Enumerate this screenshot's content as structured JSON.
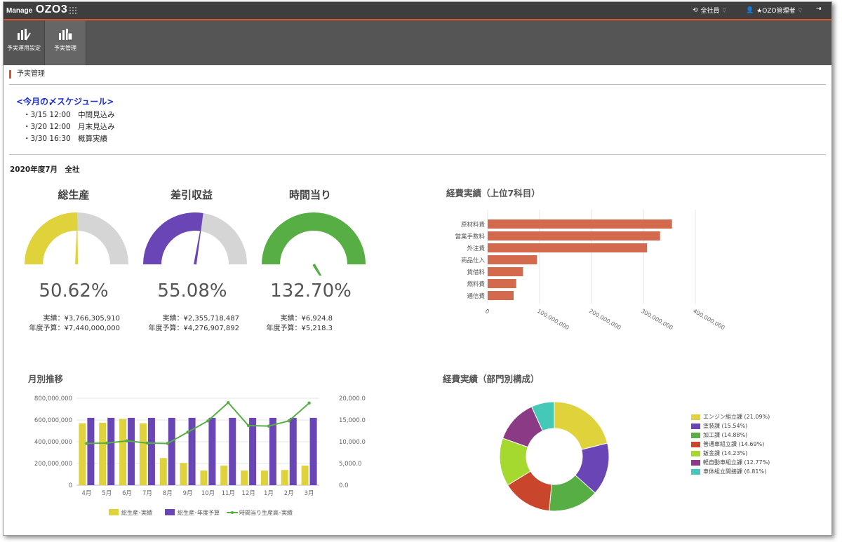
{
  "header": {
    "logo_prefix": "Manage",
    "logo_main": "OZO3",
    "scope_label": "全社員",
    "user_label": "★OZO管理者"
  },
  "toolbar": {
    "items": [
      {
        "label": "予実運用設定",
        "icon": "bar-chart-settings-icon"
      },
      {
        "label": "予実管理",
        "icon": "bar-chart-document-icon"
      }
    ]
  },
  "breadcrumb": "予実管理",
  "schedule": {
    "title": "<今月の〆スケジュール>",
    "items": [
      "・3/15 12:00　中間見込み",
      "・3/20 12:00　月末見込み",
      "・3/30 16:30　概算実績"
    ]
  },
  "period": "2020年度7月　全社",
  "colors": {
    "accent": "#d9542c",
    "gauge_yellow": "#dfd23a",
    "gauge_purple": "#6a45b5",
    "gauge_green": "#56ae44",
    "bar_orange": "#d36a4e",
    "gray_track": "#d5d5d5"
  },
  "gauges": [
    {
      "title": "総生産",
      "percent": "50.62%",
      "value": 50.62,
      "color": "#dfd23a",
      "actual": "実績：¥3,766,305,910",
      "budget": "年度予算：¥7,440,000,000"
    },
    {
      "title": "差引収益",
      "percent": "55.08%",
      "value": 55.08,
      "color": "#6a45b5",
      "actual": "実績：¥2,355,718,487",
      "budget": "年度予算：¥4,276,907,892"
    },
    {
      "title": "時間当り",
      "percent": "132.70%",
      "value": 132.7,
      "color": "#56ae44",
      "actual": "実績：¥6,924.8",
      "budget": "年度予算：¥5,218.3"
    }
  ],
  "chart_data": [
    {
      "type": "bar",
      "orientation": "horizontal",
      "title": "経費実績（上位7科目）",
      "categories": [
        "原材料費",
        "営業手数料",
        "外注費",
        "商品仕入",
        "賃借料",
        "燃料費",
        "通信費"
      ],
      "values": [
        355000000,
        332000000,
        307000000,
        95000000,
        68000000,
        55000000,
        50000000
      ],
      "xlim": [
        0,
        400000000
      ],
      "tick_labels": [
        "0",
        "100,000,000",
        "200,000,000",
        "300,000,000",
        "400,000,000"
      ],
      "grid": true
    },
    {
      "type": "bar",
      "title": "月別推移",
      "categories": [
        "4月",
        "5月",
        "6月",
        "7月",
        "8月",
        "9月",
        "10月",
        "11月",
        "12月",
        "1月",
        "2月",
        "3月"
      ],
      "series": [
        {
          "name": "総生産･実績",
          "type": "bar",
          "axis": "left",
          "color": "#dfd23a",
          "values": [
            570000000,
            575000000,
            610000000,
            570000000,
            250000000,
            205000000,
            135000000,
            180000000,
            135000000,
            135000000,
            140000000,
            180000000
          ]
        },
        {
          "name": "総生産･年度予算",
          "type": "bar",
          "axis": "left",
          "color": "#6a45b5",
          "values": [
            620000000,
            620000000,
            620000000,
            620000000,
            620000000,
            620000000,
            620000000,
            620000000,
            620000000,
            620000000,
            620000000,
            620000000
          ]
        },
        {
          "name": "時間当り生産高･実績",
          "type": "line",
          "axis": "right",
          "color": "#56ae44",
          "values": [
            9600,
            9700,
            10200,
            9700,
            9600,
            12200,
            14800,
            19000,
            13700,
            13600,
            14800,
            18900
          ]
        }
      ],
      "ylim_left": [
        0,
        800000000
      ],
      "ylim_right": [
        0,
        20000
      ],
      "left_ticks": [
        "0",
        "200,000,000",
        "400,000,000",
        "600,000,000",
        "800,000,000"
      ],
      "right_ticks": [
        "0.0",
        "5,000.0",
        "10,000.0",
        "15,000.0",
        "20,000.0"
      ],
      "legend": "bottom"
    },
    {
      "type": "pie",
      "donut": true,
      "title": "経費実績（部門別構成）",
      "labels": [
        "エンジン組立課 (21.09%)",
        "塗装課 (15.54%)",
        "加工課 (14.88%)",
        "普通車組立課 (14.69%)",
        "鈑金課 (14.23%)",
        "軽自動車組立課 (12.77%)",
        "車体組立間接課 (6.81%)"
      ],
      "values": [
        21.09,
        15.54,
        14.88,
        14.69,
        14.23,
        12.77,
        6.81
      ],
      "colors": [
        "#dfd23a",
        "#6a45b5",
        "#56ae44",
        "#c9452b",
        "#a6d930",
        "#8b3a86",
        "#44c9b6"
      ],
      "legend": "right"
    }
  ]
}
